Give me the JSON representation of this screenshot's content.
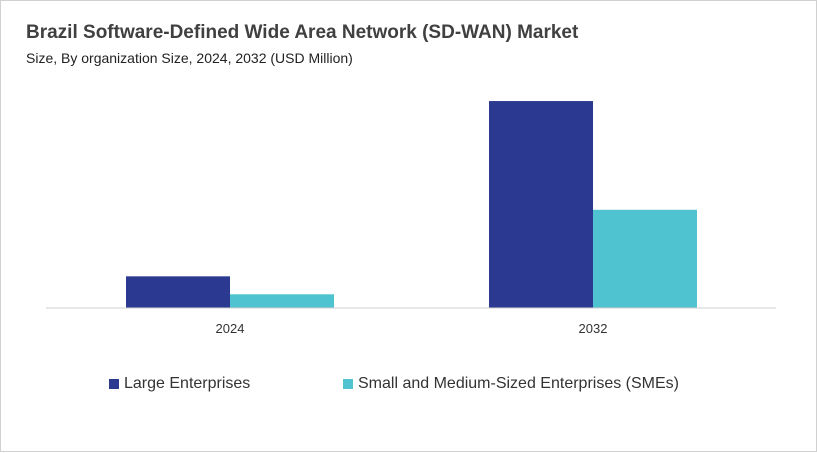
{
  "header": {
    "title": "Brazil Software-Defined Wide Area Network (SD-WAN) Market",
    "subtitle": "Size, By organization Size, 2024, 2032 (USD Million)"
  },
  "chart_data": {
    "type": "bar",
    "title": "Brazil Software-Defined Wide Area Network (SD-WAN) Market",
    "subtitle": "Size, By organization Size, 2024, 2032 (USD Million)",
    "categories": [
      "2024",
      "2032"
    ],
    "series": [
      {
        "name": "Large Enterprises",
        "color": "#2b3990",
        "values": [
          30,
          196
        ]
      },
      {
        "name": "Small and Medium-Sized Enterprises (SMEs)",
        "color": "#4fc3d0",
        "values": [
          13,
          93
        ]
      }
    ],
    "ylim": [
      0,
      215
    ],
    "grid": false,
    "legend_position": "bottom"
  }
}
